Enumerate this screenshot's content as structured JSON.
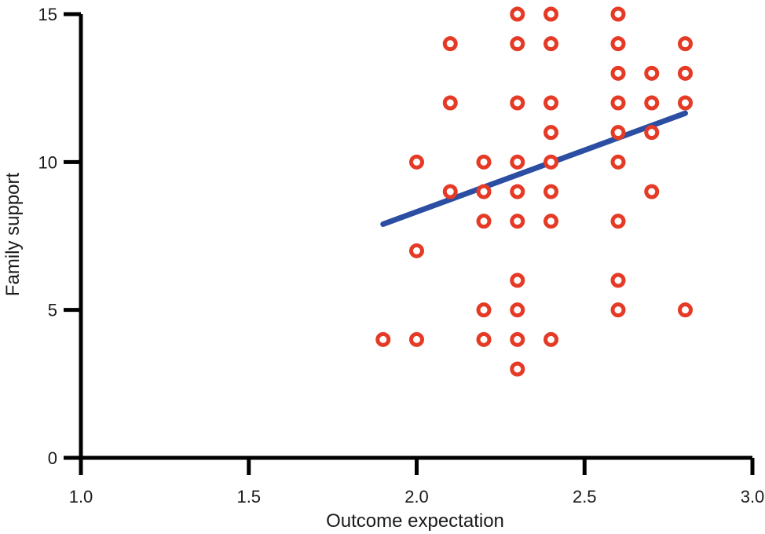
{
  "chart_data": {
    "type": "scatter",
    "title": "",
    "xlabel": "Outcome expectation",
    "ylabel": "Family support",
    "xlim": [
      1.0,
      3.0
    ],
    "ylim": [
      0,
      15
    ],
    "x_ticks": [
      "1.0",
      "1.5",
      "2.0",
      "2.5",
      "3.0"
    ],
    "y_ticks": [
      "0",
      "5",
      "10",
      "15"
    ],
    "grid": false,
    "legend": "none",
    "colors": {
      "points": "#e53a25",
      "trendline": "#2b4ea2",
      "axis": "#000000"
    },
    "points": [
      {
        "x": 1.9,
        "y": 4
      },
      {
        "x": 2.0,
        "y": 4
      },
      {
        "x": 2.0,
        "y": 7
      },
      {
        "x": 2.0,
        "y": 10
      },
      {
        "x": 2.1,
        "y": 9
      },
      {
        "x": 2.1,
        "y": 12
      },
      {
        "x": 2.1,
        "y": 14
      },
      {
        "x": 2.2,
        "y": 4
      },
      {
        "x": 2.2,
        "y": 5
      },
      {
        "x": 2.2,
        "y": 8
      },
      {
        "x": 2.2,
        "y": 9
      },
      {
        "x": 2.2,
        "y": 10
      },
      {
        "x": 2.3,
        "y": 3
      },
      {
        "x": 2.3,
        "y": 4
      },
      {
        "x": 2.3,
        "y": 5
      },
      {
        "x": 2.3,
        "y": 6
      },
      {
        "x": 2.3,
        "y": 8
      },
      {
        "x": 2.3,
        "y": 9
      },
      {
        "x": 2.3,
        "y": 10
      },
      {
        "x": 2.3,
        "y": 12
      },
      {
        "x": 2.3,
        "y": 14
      },
      {
        "x": 2.3,
        "y": 15
      },
      {
        "x": 2.4,
        "y": 4
      },
      {
        "x": 2.4,
        "y": 8
      },
      {
        "x": 2.4,
        "y": 9
      },
      {
        "x": 2.4,
        "y": 10
      },
      {
        "x": 2.4,
        "y": 11
      },
      {
        "x": 2.4,
        "y": 12
      },
      {
        "x": 2.4,
        "y": 14
      },
      {
        "x": 2.4,
        "y": 15
      },
      {
        "x": 2.6,
        "y": 5
      },
      {
        "x": 2.6,
        "y": 6
      },
      {
        "x": 2.6,
        "y": 8
      },
      {
        "x": 2.6,
        "y": 10
      },
      {
        "x": 2.6,
        "y": 11
      },
      {
        "x": 2.6,
        "y": 12
      },
      {
        "x": 2.6,
        "y": 13
      },
      {
        "x": 2.6,
        "y": 14
      },
      {
        "x": 2.6,
        "y": 15
      },
      {
        "x": 2.7,
        "y": 9
      },
      {
        "x": 2.7,
        "y": 11
      },
      {
        "x": 2.7,
        "y": 12
      },
      {
        "x": 2.7,
        "y": 13
      },
      {
        "x": 2.8,
        "y": 5
      },
      {
        "x": 2.8,
        "y": 12
      },
      {
        "x": 2.8,
        "y": 13
      },
      {
        "x": 2.8,
        "y": 14
      }
    ],
    "trendline": {
      "x": [
        1.9,
        2.8
      ],
      "y": [
        7.9,
        11.65
      ]
    }
  }
}
